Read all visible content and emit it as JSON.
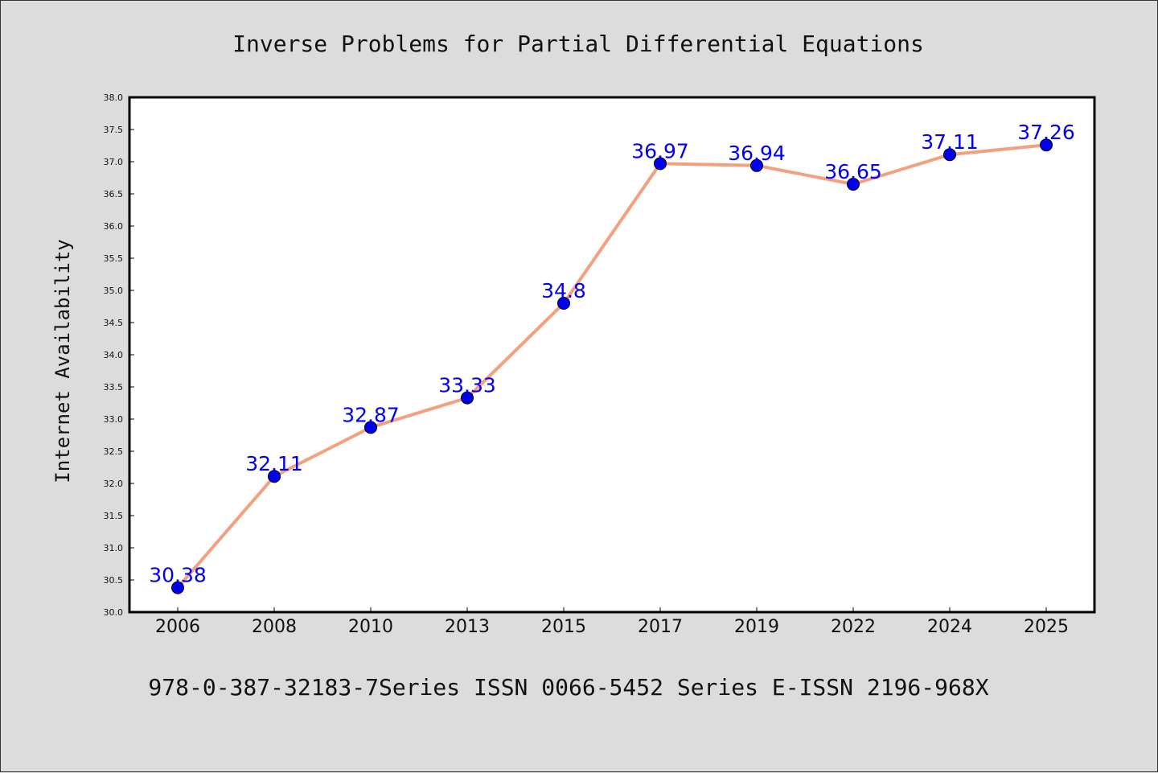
{
  "chart_data": {
    "type": "line",
    "title": "Inverse Problems for Partial Differential Equations",
    "xlabel": "",
    "ylabel": "Internet Availability",
    "categories": [
      "2006",
      "2008",
      "2010",
      "2013",
      "2015",
      "2017",
      "2019",
      "2022",
      "2024",
      "2025"
    ],
    "series": [
      {
        "values": [
          30.38,
          32.11,
          32.87,
          33.33,
          34.8,
          36.97,
          36.94,
          36.65,
          37.11,
          37.26
        ],
        "data_labels": [
          "30.38",
          "32.11",
          "32.87",
          "33.33",
          "34.8",
          "36.97",
          "36.94",
          "36.65",
          "37.11",
          "37.26"
        ],
        "line_color": "#f4a07e",
        "marker_color": "#0000ee"
      }
    ],
    "ylim": [
      30.0,
      38.0
    ],
    "yticks": [
      "30.0",
      "30.5",
      "31.0",
      "31.5",
      "32.0",
      "32.5",
      "33.0",
      "33.5",
      "34.0",
      "34.5",
      "35.0",
      "35.5",
      "36.0",
      "36.5",
      "37.0",
      "37.5",
      "38.0"
    ],
    "grid": false,
    "legend": "none",
    "footer": "978-0-387-32183-7Series ISSN 0066-5452 Series E-ISSN 2196-968X",
    "colors": {
      "background": "#dcdcdc",
      "plot_background": "#ffffff",
      "label_color": "#0000ee"
    }
  }
}
